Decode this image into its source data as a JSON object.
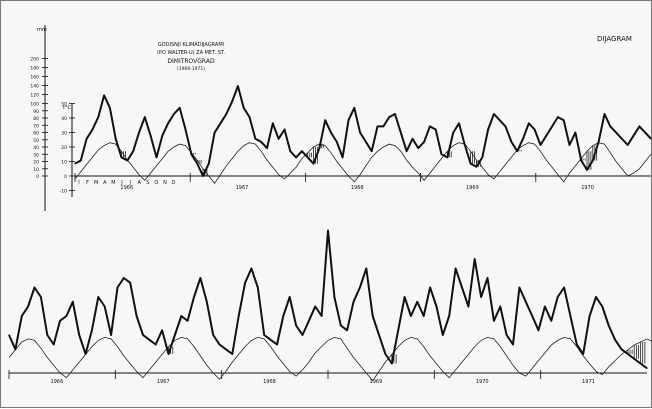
{
  "chart_data": {
    "type": "line",
    "title_lines": [
      "GODISNJI KLIMADIJAGRAMI",
      "(PO WALTER-U) ZA MET. ST.",
      "DIMITROVGRAD",
      "(1966-1971)"
    ],
    "diagram_label": "DIJAGRAM",
    "y_left_unit": "mm",
    "y_left_ticks": [
      0,
      10,
      20,
      30,
      40,
      50,
      60,
      70,
      80,
      90,
      100,
      120,
      140,
      160,
      180,
      200
    ],
    "y_right_unit": "t°C",
    "y_right_ticks": [
      -10,
      0,
      10,
      20,
      30,
      40,
      50
    ],
    "month_labels": [
      "I",
      "F",
      "M",
      "A",
      "M",
      "J",
      "J",
      "A",
      "S",
      "O",
      "N",
      "D"
    ],
    "panels": [
      {
        "years": [
          "1966",
          "1967",
          "1968",
          "1969",
          "1970"
        ],
        "precipitation_mm": [
          20,
          25,
          60,
          75,
          95,
          130,
          110,
          60,
          30,
          25,
          40,
          70,
          95,
          65,
          30,
          65,
          85,
          100,
          110,
          75,
          35,
          20,
          0,
          20,
          70,
          85,
          100,
          120,
          145,
          110,
          95,
          60,
          55,
          45,
          85,
          60,
          75,
          40,
          30,
          40,
          30,
          20,
          45,
          90,
          70,
          55,
          30,
          90,
          110,
          70,
          55,
          40,
          80,
          80,
          95,
          100,
          70,
          40,
          60,
          45,
          55,
          80,
          75,
          35,
          30,
          70,
          85,
          50,
          20,
          15,
          30,
          75,
          100,
          90,
          80,
          55,
          40,
          60,
          85,
          75,
          50,
          65,
          80,
          95,
          90,
          50,
          70,
          25,
          10,
          25,
          55,
          100,
          80,
          70,
          60,
          50,
          65,
          80,
          70,
          60
        ],
        "temperature_c": [
          -2,
          3,
          8,
          13,
          18,
          21,
          23,
          22,
          17,
          11,
          6,
          1,
          -3,
          2,
          7,
          12,
          17,
          20,
          22,
          21,
          16,
          11,
          5,
          0,
          -5,
          1,
          7,
          12,
          17,
          21,
          23,
          22,
          17,
          11,
          6,
          1,
          -2,
          2,
          6,
          12,
          16,
          20,
          22,
          21,
          16,
          10,
          5,
          0,
          -4,
          1,
          7,
          13,
          17,
          20,
          22,
          21,
          17,
          11,
          6,
          2,
          -3,
          2,
          7,
          12,
          17,
          21,
          23,
          22,
          17,
          11,
          6,
          1,
          -2,
          3,
          8,
          13,
          18,
          21,
          23,
          22,
          17,
          11,
          6,
          1,
          -4,
          2,
          7,
          12,
          17,
          21,
          23,
          22,
          16,
          10,
          5,
          0,
          2,
          5,
          10,
          15
        ]
      },
      {
        "years": [
          "1966",
          "1967",
          "1968",
          "1969",
          "1970",
          "1971"
        ],
        "precipitation_mm": [
          40,
          25,
          60,
          70,
          90,
          80,
          40,
          30,
          55,
          60,
          75,
          40,
          20,
          45,
          80,
          70,
          40,
          90,
          100,
          95,
          60,
          40,
          35,
          30,
          45,
          20,
          40,
          60,
          55,
          80,
          100,
          75,
          40,
          30,
          25,
          20,
          60,
          95,
          110,
          90,
          40,
          35,
          30,
          60,
          80,
          50,
          40,
          55,
          70,
          60,
          150,
          80,
          50,
          45,
          75,
          90,
          110,
          60,
          40,
          20,
          10,
          45,
          80,
          60,
          75,
          60,
          90,
          70,
          40,
          60,
          110,
          90,
          70,
          120,
          80,
          100,
          55,
          70,
          40,
          30,
          90,
          75,
          60,
          45,
          70,
          55,
          80,
          90,
          60,
          30,
          20,
          60,
          80,
          70,
          50,
          35,
          25,
          20,
          15,
          10,
          5
        ],
        "temperature_c": [
          10,
          15,
          20,
          22,
          21,
          16,
          10,
          5,
          0,
          -3,
          2,
          7,
          12,
          17,
          21,
          23,
          22,
          17,
          11,
          6,
          1,
          -3,
          2,
          7,
          12,
          17,
          21,
          23,
          22,
          17,
          11,
          5,
          0,
          -4,
          1,
          7,
          12,
          17,
          21,
          23,
          22,
          17,
          11,
          6,
          1,
          -2,
          2,
          7,
          13,
          17,
          21,
          23,
          22,
          16,
          10,
          5,
          0,
          -5,
          1,
          7,
          12,
          17,
          21,
          23,
          22,
          17,
          11,
          6,
          1,
          -3,
          2,
          7,
          12,
          17,
          21,
          23,
          22,
          17,
          11,
          5,
          0,
          -2,
          3,
          8,
          13,
          18,
          21,
          23,
          22,
          17,
          11,
          6,
          1,
          -1,
          4,
          8,
          12,
          15,
          18,
          20,
          22,
          20
        ]
      }
    ]
  }
}
